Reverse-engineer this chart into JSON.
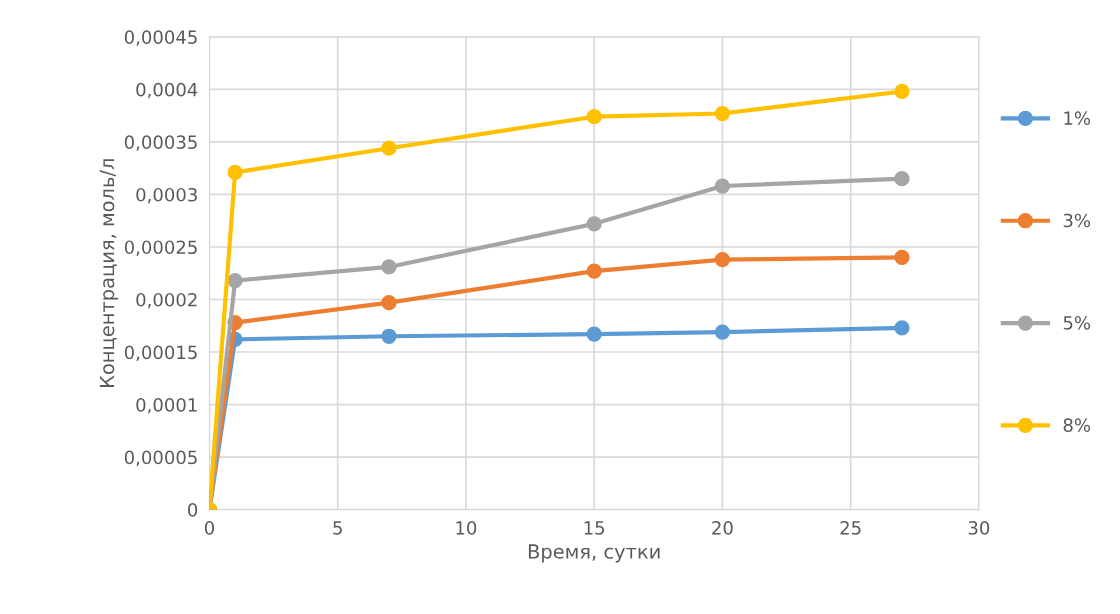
{
  "chart_data": {
    "type": "line",
    "xlabel": "Время, сутки",
    "ylabel": "Концентрация, моль/л",
    "x": [
      0,
      1,
      7,
      15,
      20,
      27
    ],
    "series": [
      {
        "name": "1%",
        "color": "#5b9bd5",
        "values": [
          0,
          0.000162,
          0.000165,
          0.000167,
          0.000169,
          0.000173
        ]
      },
      {
        "name": "3%",
        "color": "#ed7d31",
        "values": [
          0,
          0.000178,
          0.000197,
          0.000227,
          0.000238,
          0.00024
        ]
      },
      {
        "name": "5%",
        "color": "#a5a5a5",
        "values": [
          0,
          0.000218,
          0.000231,
          0.000272,
          0.000308,
          0.000315
        ]
      },
      {
        "name": "8%",
        "color": "#ffc000",
        "values": [
          0,
          0.000321,
          0.000344,
          0.000374,
          0.000377,
          0.000398
        ]
      }
    ],
    "xlim": [
      0,
      30
    ],
    "xticks": [
      0,
      5,
      10,
      15,
      20,
      25,
      30
    ],
    "ylim": [
      0,
      0.00045
    ],
    "yticks": [
      0,
      {
        "value": 5e-05,
        "label": "0,00005"
      },
      {
        "value": 0.0001,
        "label": "0,0001"
      },
      {
        "value": 0.00015,
        "label": "0,00015"
      },
      {
        "value": 0.0002,
        "label": "0,0002"
      },
      {
        "value": 0.00025,
        "label": "0,00025"
      },
      {
        "value": 0.0003,
        "label": "0,0003"
      },
      {
        "value": 0.00035,
        "label": "0,00035"
      },
      {
        "value": 0.0004,
        "label": "0,0004"
      },
      {
        "value": 0.00045,
        "label": "0,00045"
      }
    ],
    "grid": true,
    "legend": "right",
    "marker": "circle",
    "line_style": "solid"
  }
}
